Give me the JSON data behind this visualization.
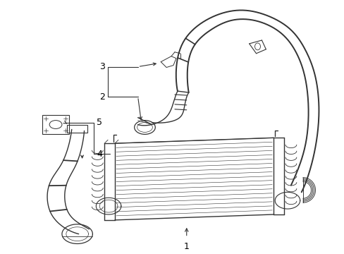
{
  "background_color": "#ffffff",
  "line_color": "#333333",
  "label_color": "#000000",
  "fig_width": 4.89,
  "fig_height": 3.6,
  "dpi": 100,
  "label_fontsize": 8
}
